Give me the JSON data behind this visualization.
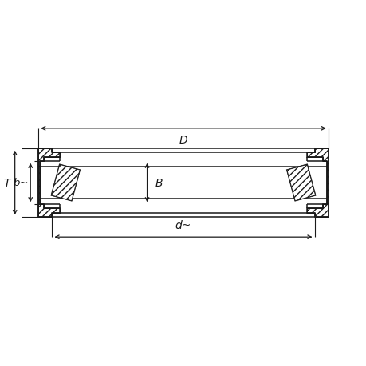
{
  "bg_color": "#ffffff",
  "line_color": "#1a1a1a",
  "figsize": [
    4.6,
    4.6
  ],
  "dpi": 100,
  "labels": {
    "d": "d~",
    "D": "D",
    "B": "B",
    "T": "T",
    "b": "b~"
  }
}
